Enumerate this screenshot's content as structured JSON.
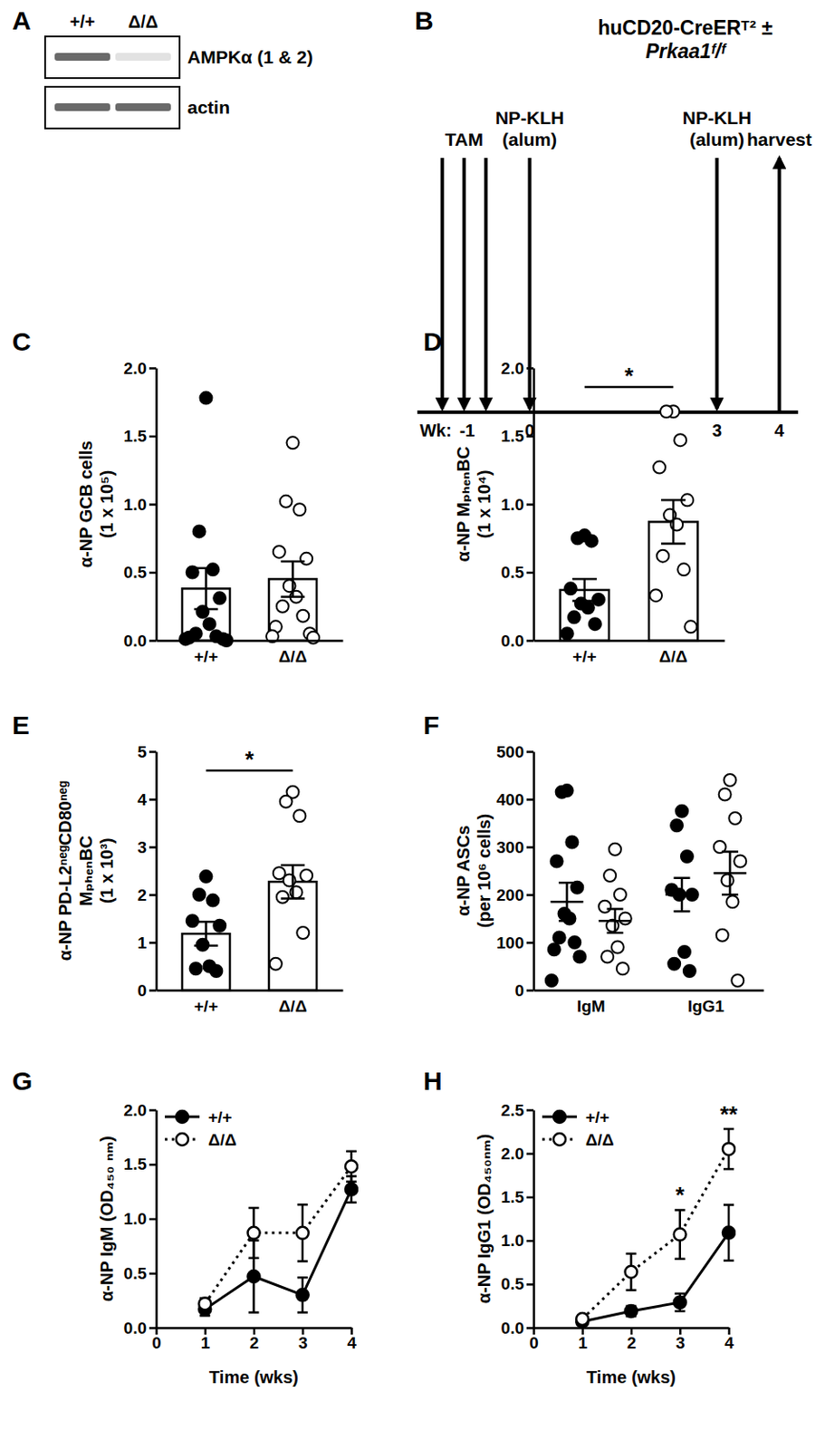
{
  "blot": {
    "panel_label": "A",
    "lanes": [
      "+/+",
      "Δ/Δ"
    ],
    "rows": [
      "AMPKα (1 & 2)",
      "actin"
    ]
  },
  "timeline": {
    "panel_label": "B",
    "title": [
      "huCD20-CreERᵀ² ±",
      "Prkaa1ᶠ/ᶠ"
    ],
    "axis_label": "Wk:",
    "xlim": [
      -1.8,
      4.3
    ],
    "ticks": [
      -1,
      0,
      3,
      4
    ],
    "events": [
      {
        "label": [
          "TAM"
        ],
        "weeks": [
          -1.4,
          -1.05,
          -0.7
        ],
        "direction": "down"
      },
      {
        "label": [
          "NP-KLH",
          "(alum)"
        ],
        "weeks": [
          0
        ],
        "direction": "down"
      },
      {
        "label": [
          "NP-KLH",
          "(alum)"
        ],
        "weeks": [
          3
        ],
        "direction": "down"
      },
      {
        "label": [
          "harvest"
        ],
        "weeks": [
          4
        ],
        "direction": "up"
      }
    ]
  },
  "chart_data": [
    {
      "panel_label": "C",
      "type": "bar",
      "categories": [
        "+/+",
        "Δ/Δ"
      ],
      "values": [
        0.38,
        0.45
      ],
      "errors": [
        0.15,
        0.13
      ],
      "points": [
        [
          1.78,
          0.8,
          0.52,
          0.5,
          0.31,
          0.21,
          0.12,
          0.05,
          0.03,
          0.02,
          0.01,
          0.01,
          0.0
        ],
        [
          1.45,
          1.02,
          0.96,
          0.65,
          0.6,
          0.4,
          0.32,
          0.25,
          0.18,
          0.1,
          0.05,
          0.03,
          0.02
        ]
      ],
      "colors": [
        "#000000",
        "#ffffff"
      ],
      "ylabel": [
        "α-NP GCB cells",
        "(1 x 10⁵)"
      ],
      "ylim": [
        0,
        2
      ],
      "yticks": [
        {
          "value": 0,
          "label": "0.0"
        },
        {
          "value": 0.5,
          "label": "0.5"
        },
        {
          "value": 1,
          "label": "1.0"
        },
        {
          "value": 1.5,
          "label": "1.5"
        },
        {
          "value": 2,
          "label": "2.0"
        }
      ]
    },
    {
      "panel_label": "D",
      "type": "bar",
      "categories": [
        "+/+",
        "Δ/Δ"
      ],
      "values": [
        0.37,
        0.87
      ],
      "errors": [
        0.08,
        0.16
      ],
      "points": [
        [
          0.77,
          0.75,
          0.73,
          0.38,
          0.3,
          0.27,
          0.24,
          0.17,
          0.12,
          0.05
        ],
        [
          1.68,
          1.68,
          1.47,
          1.27,
          1.03,
          0.92,
          0.85,
          0.62,
          0.52,
          0.33,
          0.1
        ]
      ],
      "colors": [
        "#000000",
        "#ffffff"
      ],
      "ylabel": [
        "α-NP MₚₕₑₙBC",
        "(1 x 10⁴)"
      ],
      "ylim": [
        0,
        2
      ],
      "yticks": [
        {
          "value": 0,
          "label": "0.0"
        },
        {
          "value": 0.5,
          "label": "0.5"
        },
        {
          "value": 1,
          "label": "1.0"
        },
        {
          "value": 1.5,
          "label": "1.5"
        },
        {
          "value": 2,
          "label": "2.0"
        }
      ],
      "significance": "*"
    },
    {
      "panel_label": "E",
      "type": "bar",
      "categories": [
        "+/+",
        "Δ/Δ"
      ],
      "values": [
        1.18,
        2.27
      ],
      "errors": [
        0.25,
        0.35
      ],
      "points": [
        [
          2.38,
          2.0,
          1.88,
          1.45,
          1.35,
          0.95,
          0.5,
          0.45,
          0.4
        ],
        [
          4.15,
          3.95,
          3.65,
          2.45,
          2.4,
          2.3,
          2.05,
          1.95,
          1.2,
          0.55
        ]
      ],
      "colors": [
        "#000000",
        "#ffffff"
      ],
      "ylabel": [
        "α-NP PD-L2ⁿᵉᵍCD80ⁿᵉᵍ",
        "MₚₕₑₙBC",
        "(1 x 10³)"
      ],
      "ylim": [
        0,
        5
      ],
      "yticks": [
        0,
        1,
        2,
        3,
        4,
        5
      ],
      "significance": "*"
    },
    {
      "panel_label": "F",
      "type": "scatter",
      "categories": [
        "IgM",
        "IgG1"
      ],
      "series": [
        {
          "color": "#000000",
          "marker": "filled",
          "values": [
            185,
            200
          ],
          "errors": [
            40,
            35
          ],
          "points": [
            [
              418,
              415,
              310,
              270,
              215,
              160,
              150,
              110,
              100,
              85,
              70,
              20
            ],
            [
              375,
              345,
              280,
              210,
              200,
              200,
              80,
              55,
              40
            ]
          ]
        },
        {
          "color": "#000000",
          "marker": "open",
          "values": [
            145,
            245
          ],
          "errors": [
            25,
            45
          ],
          "points": [
            [
              295,
              240,
              200,
              175,
              150,
              135,
              90,
              70,
              45
            ],
            [
              440,
              410,
              360,
              300,
              270,
              230,
              185,
              115,
              20
            ]
          ]
        }
      ],
      "ylabel": [
        "α-NP ASCs",
        "(per 10⁶ cells)"
      ],
      "ylim": [
        0,
        500
      ],
      "yticks": [
        0,
        100,
        200,
        300,
        400,
        500
      ]
    },
    {
      "panel_label": "G",
      "type": "line",
      "x": [
        1,
        2,
        3,
        4
      ],
      "series": [
        {
          "name": "+/+",
          "color": "#000000",
          "marker": "filled",
          "line_style": "solid",
          "values": [
            0.17,
            0.47,
            0.3,
            1.27
          ],
          "errors": [
            0.06,
            0.33,
            0.16,
            0.12
          ]
        },
        {
          "name": "Δ/Δ",
          "color": "#000000",
          "marker": "open",
          "line_style": "dotted",
          "values": [
            0.22,
            0.87,
            0.87,
            1.48
          ],
          "errors": [
            0.05,
            0.23,
            0.26,
            0.14
          ]
        }
      ],
      "xlabel": "Time (wks)",
      "ylabel": [
        "α-NP IgM (OD₄₅₀ ₙₘ)"
      ],
      "xlim": [
        0,
        4
      ],
      "xticks": [
        0,
        1,
        2,
        3,
        4
      ],
      "ylim": [
        0,
        2
      ],
      "yticks": [
        {
          "value": 0,
          "label": "0.0"
        },
        {
          "value": 0.5,
          "label": "0.5"
        },
        {
          "value": 1,
          "label": "1.0"
        },
        {
          "value": 1.5,
          "label": "1.5"
        },
        {
          "value": 2,
          "label": "2.0"
        }
      ],
      "legend": "upper left"
    },
    {
      "panel_label": "H",
      "type": "line",
      "x": [
        1,
        2,
        3,
        4
      ],
      "series": [
        {
          "name": "+/+",
          "color": "#000000",
          "marker": "filled",
          "line_style": "solid",
          "values": [
            0.07,
            0.19,
            0.29,
            1.09
          ],
          "errors": [
            0.02,
            0.06,
            0.1,
            0.32
          ]
        },
        {
          "name": "Δ/Δ",
          "color": "#000000",
          "marker": "open",
          "line_style": "dotted",
          "values": [
            0.1,
            0.64,
            1.07,
            2.05
          ],
          "errors": [
            0.03,
            0.21,
            0.28,
            0.23
          ]
        }
      ],
      "xlabel": "Time (wks)",
      "ylabel": [
        "α-NP IgG1 (OD₄₅₀ₙₘ)"
      ],
      "xlim": [
        0,
        4
      ],
      "xticks": [
        0,
        1,
        2,
        3,
        4
      ],
      "ylim": [
        0,
        2.5
      ],
      "yticks": [
        {
          "value": 0,
          "label": "0.0"
        },
        {
          "value": 0.5,
          "label": "0.5"
        },
        {
          "value": 1,
          "label": "1.0"
        },
        {
          "value": 1.5,
          "label": "1.5"
        },
        {
          "value": 2,
          "label": "2.0"
        },
        {
          "value": 2.5,
          "label": "2.5"
        }
      ],
      "legend": "upper left",
      "significance": [
        null,
        null,
        "*",
        "**"
      ]
    }
  ]
}
